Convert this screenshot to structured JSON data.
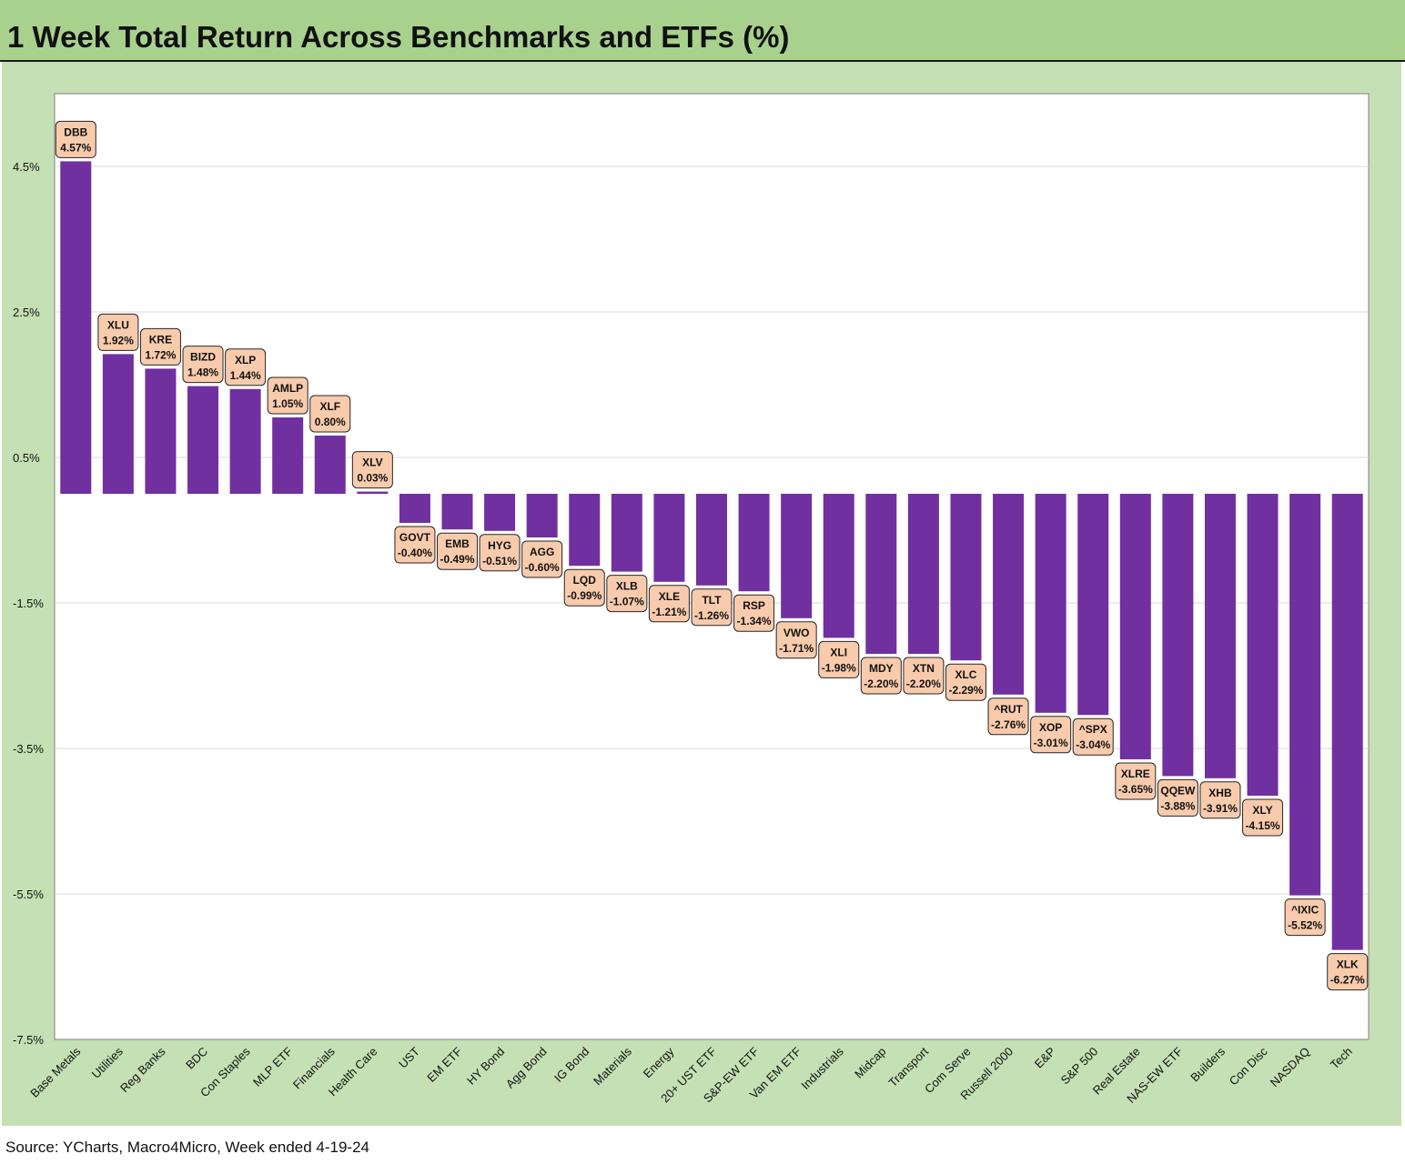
{
  "title": "1 Week Total Return Across Benchmarks and ETFs (%)",
  "source": "Source: YCharts, Macro4Micro, Week ended 4-19-24",
  "colors": {
    "bar": "#7030a0",
    "label_fill": "#f8cbad",
    "panel": "#c5e0b4",
    "title_bar": "#a9d18e",
    "grid": "#d9d9d9"
  },
  "chart_data": {
    "type": "bar",
    "ylim": [
      -7.5,
      5.5
    ],
    "yticks": [
      "4.5%",
      "2.5%",
      "0.5%",
      "-1.5%",
      "-3.5%",
      "-5.5%",
      "-7.5%"
    ],
    "ytick_values": [
      4.5,
      2.5,
      0.5,
      -1.5,
      -3.5,
      -5.5,
      -7.5
    ],
    "grid": true,
    "categories": [
      "Base Metals",
      "Utilities",
      "Reg Banks",
      "BDC",
      "Con Staples",
      "MLP ETF",
      "Financials",
      "Health Care",
      "UST",
      "EM ETF",
      "HY Bond",
      "Agg Bond",
      "IG Bond",
      "Materials",
      "Energy",
      "20+ UST ETF",
      "S&P-EW ETF",
      "Van EM ETF",
      "Industrials",
      "Midcap",
      "Transport",
      "Com Serve",
      "Russell 2000",
      "E&P",
      "S&P 500",
      "Real Estate",
      "NAS-EW ETF",
      "Builders",
      "Con Disc",
      "NASDAQ",
      "Tech"
    ],
    "tickers": [
      "DBB",
      "XLU",
      "KRE",
      "BIZD",
      "XLP",
      "AMLP",
      "XLF",
      "XLV",
      "GOVT",
      "EMB",
      "HYG",
      "AGG",
      "LQD",
      "XLB",
      "XLE",
      "TLT",
      "RSP",
      "VWO",
      "XLI",
      "MDY",
      "XTN",
      "XLC",
      "^RUT",
      "XOP",
      "^SPX",
      "XLRE",
      "QQEW",
      "XHB",
      "XLY",
      "^IXIC",
      "XLK"
    ],
    "values": [
      4.57,
      1.92,
      1.72,
      1.48,
      1.44,
      1.05,
      0.8,
      0.03,
      -0.4,
      -0.49,
      -0.51,
      -0.6,
      -0.99,
      -1.07,
      -1.21,
      -1.26,
      -1.34,
      -1.71,
      -1.98,
      -2.2,
      -2.2,
      -2.29,
      -2.76,
      -3.01,
      -3.04,
      -3.65,
      -3.88,
      -3.91,
      -4.15,
      -5.52,
      -6.27
    ],
    "value_labels": [
      "4.57%",
      "1.92%",
      "1.72%",
      "1.48%",
      "1.44%",
      "1.05%",
      "0.80%",
      "0.03%",
      "-0.40%",
      "-0.49%",
      "-0.51%",
      "-0.60%",
      "-0.99%",
      "-1.07%",
      "-1.21%",
      "-1.26%",
      "-1.34%",
      "-1.71%",
      "-1.98%",
      "-2.20%",
      "-2.20%",
      "-2.29%",
      "-2.76%",
      "-3.01%",
      "-3.04%",
      "-3.65%",
      "-3.88%",
      "-3.91%",
      "-4.15%",
      "-5.52%",
      "-6.27%"
    ]
  }
}
